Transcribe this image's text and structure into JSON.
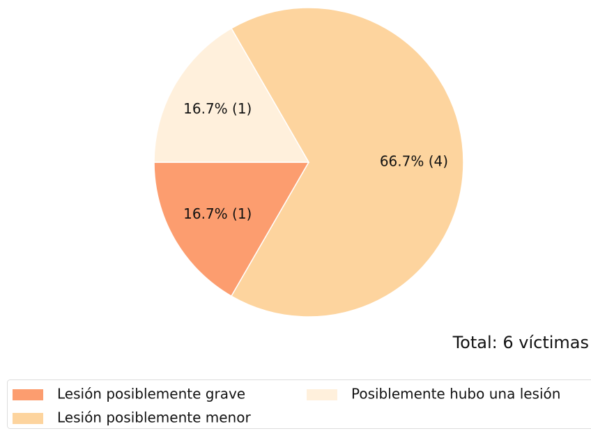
{
  "chart_data": {
    "type": "pie",
    "categories": [
      "Lesión posiblemente grave",
      "Lesión posiblemente menor",
      "Posiblemente hubo una lesión"
    ],
    "values": [
      1,
      4,
      1
    ],
    "value_labels": [
      "16.7%  (1)",
      "66.7%  (4)",
      "16.7%  (1)"
    ],
    "colors": [
      "#fc9d6f",
      "#fdd49e",
      "#fff0dc"
    ],
    "annotation": "Total: 6 víctimas",
    "legend": "lower center"
  }
}
